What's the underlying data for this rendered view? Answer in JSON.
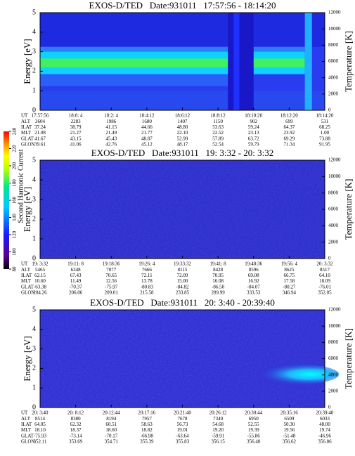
{
  "chart_data": [
    {
      "type": "spectrogram",
      "title": "EXOS-D/TED   Date:931011   17:57:56 - 18:14:20",
      "ylabel": "Energy [eV]",
      "y2label": "Temperature [K]",
      "ylim": [
        0,
        5
      ],
      "yticks": [
        0,
        1,
        2,
        3,
        4,
        5
      ],
      "y2lim": [
        0,
        12000
      ],
      "y2ticks": [
        0,
        2000,
        4000,
        6000,
        8000,
        10000,
        12000
      ],
      "rows": [
        {
          "label": "UT",
          "values": [
            "17:57:56",
            "18:0: 4",
            "18:2: 4",
            "18:4:12",
            "18:6:12",
            "18:8:12",
            "18:10:20",
            "18:12:20",
            "18:14:20"
          ]
        },
        {
          "label": "ALT",
          "values": [
            "2604",
            "2283",
            "1986",
            "1680",
            "1407",
            "1150",
            "902",
            "699",
            "531"
          ]
        },
        {
          "label": "ILAT",
          "values": [
            "37.24",
            "38.79",
            "41.15",
            "44.66",
            "48.80",
            "53.63",
            "59.24",
            "64.37",
            "68.25"
          ]
        },
        {
          "label": "MLT",
          "values": [
            "21.08",
            "21.27",
            "21.49",
            "21.77",
            "22.10",
            "22.52",
            "23.13",
            "23.92",
            "1.00"
          ]
        },
        {
          "label": "GLAT",
          "values": [
            "41.67",
            "43.15",
            "45.43",
            "48.87",
            "52.99",
            "57.89",
            "63.72",
            "69.29",
            "73.88"
          ]
        },
        {
          "label": "GLON",
          "values": [
            "39.61",
            "41.06",
            "42.76",
            "45.12",
            "48.17",
            "52.54",
            "59.79",
            "71.34",
            "91.95"
          ]
        }
      ]
    },
    {
      "type": "spectrogram",
      "title": "EXOS-D/TED   Date:931011   19: 3:32 - 20: 3:32",
      "ylabel": "Energy [eV]",
      "y2label": "Temperature [K]",
      "ylim": [
        0,
        5
      ],
      "yticks": [
        0,
        1,
        2,
        3,
        4,
        5
      ],
      "y2lim": [
        0,
        12000
      ],
      "y2ticks": [
        0,
        2000,
        4000,
        6000,
        8000,
        10000,
        12000
      ],
      "rows": [
        {
          "label": "UT",
          "values": [
            "19: 3:32",
            "19:11: 8",
            "19:18:36",
            "19:26: 4",
            "19:33:32",
            "19:41: 8",
            "19:48:36",
            "19:56: 4",
            "20: 3:32"
          ]
        },
        {
          "label": "ALT",
          "values": [
            "5465",
            "6348",
            "7077",
            "7666",
            "8115",
            "8428",
            "8596",
            "8625",
            "8517"
          ]
        },
        {
          "label": "ILAT",
          "values": [
            "62.15",
            "67.43",
            "70.65",
            "72.11",
            "72.09",
            "70.95",
            "69.08",
            "66.75",
            "64.10"
          ]
        },
        {
          "label": "MLT",
          "values": [
            "10.60",
            "11.49",
            "12.56",
            "13.78",
            "15.00",
            "16.08",
            "16.92",
            "17.58",
            "18.09"
          ]
        },
        {
          "label": "GLAT",
          "values": [
            "-63.38",
            "-70.37",
            "-75.97",
            "-80.83",
            "-84.82",
            "-86.50",
            "-84.07",
            "-80.27",
            "-76.01"
          ]
        },
        {
          "label": "GLON",
          "values": [
            "204.26",
            "206.06",
            "209.01",
            "215.58",
            "233.85",
            "289.99",
            "333.53",
            "346.94",
            "352.05"
          ]
        }
      ],
      "colorbar": {
        "label": "Second Harmonic Current",
        "lim": [
          80,
          240
        ],
        "ticks": [
          80,
          100,
          120,
          140,
          160,
          180,
          200,
          220,
          240
        ]
      }
    },
    {
      "type": "spectrogram",
      "title": "EXOS-D/TED   Date:931011   20: 3:40 - 20:39:40",
      "ylabel": "Energy [eV]",
      "y2label": "Temperature [K]",
      "ylim": [
        0,
        5
      ],
      "yticks": [
        0,
        1,
        2,
        3,
        4,
        5
      ],
      "y2lim": [
        0,
        12000
      ],
      "y2ticks": [
        0,
        2000,
        4000,
        6000,
        8000,
        10000,
        12000
      ],
      "rows": [
        {
          "label": "UT",
          "values": [
            "20: 3:40",
            "20: 8:12",
            "20:12:44",
            "20:17:16",
            "20:21:40",
            "20:26:12",
            "20:30:44",
            "20:35:16",
            "20:39:40"
          ]
        },
        {
          "label": "ALT",
          "values": [
            "8514",
            "8380",
            "8194",
            "7957",
            "7678",
            "7340",
            "6950",
            "6509",
            "6033"
          ]
        },
        {
          "label": "ILAT",
          "values": [
            "64.05",
            "62.32",
            "60.51",
            "58.63",
            "56.73",
            "54.68",
            "52.55",
            "50.30",
            "48.00"
          ]
        },
        {
          "label": "MLT",
          "values": [
            "18.10",
            "18.37",
            "18.60",
            "18.82",
            "19.01",
            "19.20",
            "19.39",
            "19.56",
            "19.74"
          ]
        },
        {
          "label": "GLAT",
          "values": [
            "-75.93",
            "-73.14",
            "-70.17",
            "-66.98",
            "-63.64",
            "-59.91",
            "-55.86",
            "-51.48",
            "-46.96"
          ]
        },
        {
          "label": "GLON",
          "values": [
            "352.11",
            "353.69",
            "354.71",
            "355.39",
            "355.83",
            "356.15",
            "356.40",
            "356.62",
            "356.86"
          ]
        }
      ]
    }
  ]
}
